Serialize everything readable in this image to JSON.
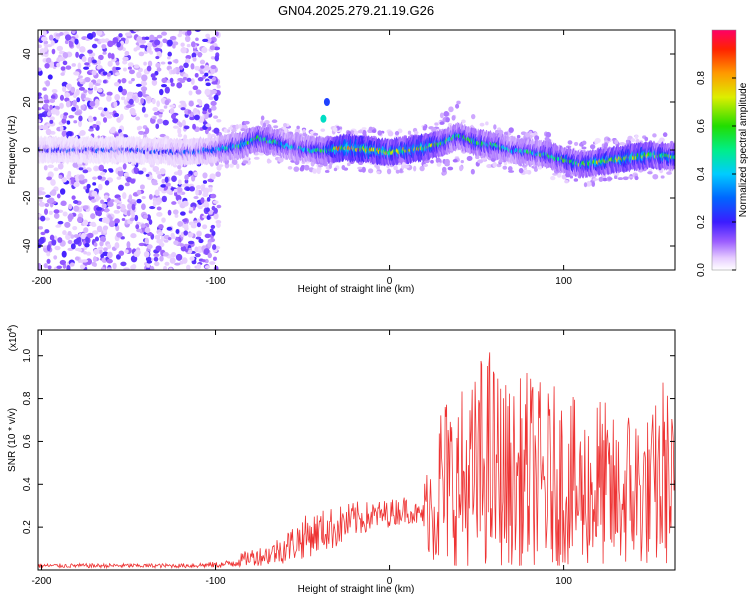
{
  "title": "GN04.2025.279.21.19.G26",
  "chart_data": [
    {
      "type": "heatmap",
      "xlabel": "Height of straight line (km)",
      "ylabel": "Frequency (Hz)",
      "xlim": [
        -202,
        164
      ],
      "ylim": [
        -50,
        50
      ],
      "xticks": [
        -200,
        -100,
        0,
        100
      ],
      "yticks": [
        -40,
        -20,
        0,
        20,
        40
      ],
      "x_tick_labels": [
        "-200",
        "-100",
        "0",
        "100"
      ],
      "y_tick_labels": [
        "-40",
        "-20",
        "0",
        "20",
        "40"
      ],
      "colorbar": {
        "label": "Normalized spectral amplitude",
        "range": [
          0,
          1
        ],
        "ticks": [
          0.0,
          0.2,
          0.4,
          0.6,
          0.8
        ],
        "tick_labels": [
          "0.0",
          "0.2",
          "0.4",
          "0.6",
          "0.8"
        ]
      },
      "ridge": {
        "x": [
          -202,
          -150,
          -120,
          -100,
          -85,
          -75,
          -65,
          -55,
          -45,
          -35,
          -25,
          -10,
          0,
          10,
          20,
          30,
          40,
          50,
          60,
          70,
          80,
          90,
          100,
          110,
          120,
          130,
          140,
          150,
          164
        ],
        "freq": [
          0,
          0,
          -1,
          0,
          2,
          5,
          3,
          1,
          0,
          0,
          1,
          0,
          -1,
          0,
          1,
          3,
          6,
          3,
          2,
          0,
          -1,
          -2,
          -4,
          -6,
          -5,
          -4,
          -3,
          -2,
          -3
        ],
        "peak_amplitude": [
          0.15,
          0.15,
          0.2,
          0.3,
          0.5,
          0.55,
          0.45,
          0.4,
          0.45,
          0.6,
          0.9,
          0.85,
          0.7,
          0.75,
          0.8,
          0.6,
          0.5,
          0.55,
          0.5,
          0.4,
          0.45,
          0.5,
          0.55,
          0.6,
          0.7,
          0.7,
          0.75,
          0.7,
          0.6
        ]
      },
      "noise_region_x": [
        -202,
        -98
      ],
      "annotations": [
        {
          "x": -38,
          "freq": 13,
          "amplitude": 0.45
        },
        {
          "x": -36,
          "freq": 20,
          "amplitude": 0.25
        }
      ]
    },
    {
      "type": "line",
      "xlabel": "Height of straight line (km)",
      "ylabel": "SNR (10 * v/v)",
      "y_multiplier": "(x10",
      "y_multiplier_exp": "4",
      "y_multiplier_close": ")",
      "xlim": [
        -202,
        164
      ],
      "ylim": [
        0,
        1.12
      ],
      "xticks": [
        -200,
        -100,
        0,
        100
      ],
      "yticks": [
        0.2,
        0.4,
        0.6,
        0.8,
        1.0
      ],
      "x_tick_labels": [
        "-200",
        "-100",
        "0",
        "100"
      ],
      "y_tick_labels": [
        "0.2",
        "0.4",
        "0.6",
        "0.8",
        "1.0"
      ],
      "series": [
        {
          "name": "SNR",
          "color": "#ee3333",
          "envelope_x": [
            -202,
            -120,
            -95,
            -90,
            -80,
            -70,
            -60,
            -50,
            -40,
            -30,
            -20,
            -10,
            0,
            10,
            18,
            25,
            30,
            40,
            50,
            55,
            60,
            70,
            80,
            90,
            100,
            110,
            120,
            130,
            140,
            150,
            158,
            164
          ],
          "envelope_min": [
            0.01,
            0.01,
            0.01,
            0.01,
            0.02,
            0.02,
            0.03,
            0.05,
            0.08,
            0.1,
            0.15,
            0.18,
            0.2,
            0.22,
            0.2,
            0.02,
            0.02,
            0.02,
            0.02,
            0.02,
            0.02,
            0.02,
            0.02,
            0.02,
            0.02,
            0.02,
            0.02,
            0.02,
            0.02,
            0.02,
            0.02,
            0.05
          ],
          "envelope_max": [
            0.03,
            0.03,
            0.04,
            0.06,
            0.1,
            0.12,
            0.18,
            0.25,
            0.28,
            0.3,
            0.32,
            0.32,
            0.33,
            0.35,
            0.3,
            0.7,
            0.85,
            0.85,
            0.92,
            1.12,
            1.0,
            0.85,
            0.95,
            0.85,
            0.88,
            0.75,
            0.85,
            0.7,
            0.82,
            0.72,
            0.95,
            0.7
          ]
        }
      ]
    }
  ]
}
